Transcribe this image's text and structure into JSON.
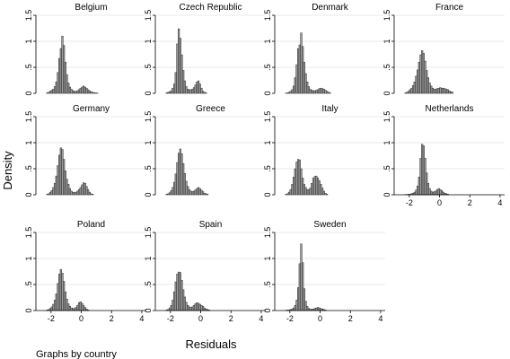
{
  "chart_data": {
    "type": "bar",
    "y_axis_title": "Density",
    "x_axis_title": "Residuals",
    "note": "Graphs by country",
    "xlim": [
      -3,
      4.3
    ],
    "ylim": [
      0,
      1.5
    ],
    "x_ticks": [
      {
        "value": -2,
        "label": "-2"
      },
      {
        "value": 0,
        "label": "0"
      },
      {
        "value": 2,
        "label": "2"
      },
      {
        "value": 4,
        "label": "4"
      }
    ],
    "y_ticks": [
      {
        "value": 0,
        "label": "0"
      },
      {
        "value": 0.5,
        "label": ".5"
      },
      {
        "value": 1,
        "label": "1"
      },
      {
        "value": 1.5,
        "label": "1.5"
      }
    ],
    "bin_start": -2.3,
    "bin_width": 0.1,
    "panels": [
      {
        "country": "Belgium",
        "densities": [
          0.01,
          0.02,
          0.04,
          0.06,
          0.08,
          0.13,
          0.22,
          0.4,
          0.67,
          0.86,
          1.1,
          0.92,
          0.6,
          0.36,
          0.2,
          0.12,
          0.08,
          0.05,
          0.04,
          0.04,
          0.05,
          0.07,
          0.1,
          0.12,
          0.14,
          0.12,
          0.1,
          0.07,
          0.05,
          0.03,
          0.02,
          0.01,
          0.01,
          0.005
        ]
      },
      {
        "country": "Czech Republic",
        "densities": [
          0.01,
          0.02,
          0.03,
          0.05,
          0.1,
          0.18,
          0.4,
          0.95,
          1.24,
          1.06,
          0.74,
          0.44,
          0.24,
          0.13,
          0.08,
          0.07,
          0.07,
          0.08,
          0.11,
          0.16,
          0.22,
          0.24,
          0.18,
          0.1,
          0.04,
          0.02,
          0.01
        ]
      },
      {
        "country": "Denmark",
        "densities": [
          0.005,
          0.01,
          0.02,
          0.04,
          0.07,
          0.14,
          0.3,
          0.55,
          0.86,
          0.93,
          1.16,
          0.9,
          0.6,
          0.38,
          0.22,
          0.13,
          0.08,
          0.06,
          0.05,
          0.05,
          0.06,
          0.07,
          0.09,
          0.1,
          0.09,
          0.08,
          0.06,
          0.04,
          0.02,
          0.01
        ]
      },
      {
        "country": "France",
        "densities": [
          0.01,
          0.02,
          0.04,
          0.07,
          0.1,
          0.15,
          0.22,
          0.33,
          0.45,
          0.6,
          0.74,
          0.82,
          0.77,
          0.62,
          0.44,
          0.3,
          0.2,
          0.14,
          0.1,
          0.08,
          0.08,
          0.09,
          0.1,
          0.11,
          0.1,
          0.1,
          0.09,
          0.08,
          0.07,
          0.05,
          0.03,
          0.02
        ]
      },
      {
        "country": "Germany",
        "densities": [
          0.01,
          0.02,
          0.05,
          0.08,
          0.14,
          0.22,
          0.36,
          0.56,
          0.76,
          0.9,
          0.87,
          0.68,
          0.46,
          0.3,
          0.2,
          0.12,
          0.07,
          0.05,
          0.04,
          0.05,
          0.07,
          0.1,
          0.14,
          0.19,
          0.23,
          0.22,
          0.16,
          0.1,
          0.05,
          0.02,
          0.01
        ]
      },
      {
        "country": "Greece",
        "densities": [
          0.01,
          0.02,
          0.04,
          0.08,
          0.14,
          0.24,
          0.4,
          0.62,
          0.8,
          0.88,
          0.79,
          0.6,
          0.41,
          0.26,
          0.16,
          0.1,
          0.07,
          0.06,
          0.07,
          0.09,
          0.12,
          0.14,
          0.12,
          0.09,
          0.06,
          0.03,
          0.02,
          0.01
        ]
      },
      {
        "country": "Italy",
        "densities": [
          0.01,
          0.02,
          0.05,
          0.1,
          0.2,
          0.34,
          0.5,
          0.63,
          0.68,
          0.67,
          0.5,
          0.32,
          0.2,
          0.14,
          0.1,
          0.1,
          0.13,
          0.22,
          0.32,
          0.35,
          0.36,
          0.32,
          0.27,
          0.2,
          0.13,
          0.07,
          0.03,
          0.01
        ]
      },
      {
        "country": "Netherlands",
        "densities": [
          0.005,
          0.005,
          0.01,
          0.01,
          0.02,
          0.03,
          0.05,
          0.09,
          0.17,
          0.34,
          0.7,
          0.97,
          0.94,
          0.7,
          0.42,
          0.22,
          0.12,
          0.07,
          0.05,
          0.06,
          0.07,
          0.1,
          0.12,
          0.1,
          0.08,
          0.05,
          0.03,
          0.02,
          0.01
        ]
      },
      {
        "country": "Poland",
        "densities": [
          0.01,
          0.02,
          0.04,
          0.07,
          0.12,
          0.2,
          0.32,
          0.52,
          0.7,
          0.79,
          0.72,
          0.56,
          0.36,
          0.22,
          0.13,
          0.08,
          0.05,
          0.04,
          0.04,
          0.06,
          0.1,
          0.15,
          0.17,
          0.14,
          0.1,
          0.06,
          0.03,
          0.01
        ]
      },
      {
        "country": "Spain",
        "densities": [
          0.01,
          0.02,
          0.05,
          0.1,
          0.2,
          0.36,
          0.55,
          0.7,
          0.74,
          0.73,
          0.58,
          0.4,
          0.26,
          0.16,
          0.1,
          0.07,
          0.06,
          0.07,
          0.1,
          0.13,
          0.15,
          0.14,
          0.12,
          0.1,
          0.08,
          0.05,
          0.03,
          0.02,
          0.01
        ]
      },
      {
        "country": "Sweden",
        "densities": [
          0.005,
          0.01,
          0.01,
          0.02,
          0.03,
          0.05,
          0.1,
          0.2,
          0.44,
          0.9,
          1.28,
          0.92,
          0.42,
          0.18,
          0.08,
          0.04,
          0.03,
          0.02,
          0.03,
          0.04,
          0.05,
          0.06,
          0.05,
          0.04,
          0.03,
          0.02,
          0.01
        ]
      }
    ]
  }
}
